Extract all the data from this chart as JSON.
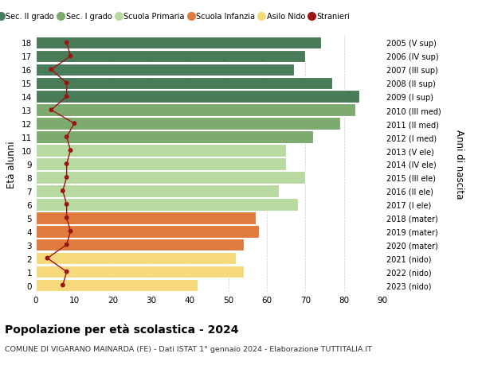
{
  "ages": [
    18,
    17,
    16,
    15,
    14,
    13,
    12,
    11,
    10,
    9,
    8,
    7,
    6,
    5,
    4,
    3,
    2,
    1,
    0
  ],
  "anni_nascita": [
    "2005 (V sup)",
    "2006 (IV sup)",
    "2007 (III sup)",
    "2008 (II sup)",
    "2009 (I sup)",
    "2010 (III med)",
    "2011 (II med)",
    "2012 (I med)",
    "2013 (V ele)",
    "2014 (IV ele)",
    "2015 (III ele)",
    "2016 (II ele)",
    "2017 (I ele)",
    "2018 (mater)",
    "2019 (mater)",
    "2020 (mater)",
    "2021 (nido)",
    "2022 (nido)",
    "2023 (nido)"
  ],
  "bar_values": [
    74,
    70,
    67,
    77,
    84,
    83,
    79,
    72,
    65,
    65,
    70,
    63,
    68,
    57,
    58,
    54,
    52,
    54,
    42
  ],
  "stranieri": [
    8,
    9,
    4,
    8,
    8,
    4,
    10,
    8,
    9,
    8,
    8,
    7,
    8,
    8,
    9,
    8,
    3,
    8,
    7
  ],
  "bar_colors": [
    "#4a7c59",
    "#4a7c59",
    "#4a7c59",
    "#4a7c59",
    "#4a7c59",
    "#7daa6e",
    "#7daa6e",
    "#7daa6e",
    "#b8d9a0",
    "#b8d9a0",
    "#b8d9a0",
    "#b8d9a0",
    "#b8d9a0",
    "#e07a3d",
    "#e07a3d",
    "#e07a3d",
    "#f5d97a",
    "#f5d97a",
    "#f5d97a"
  ],
  "legend_labels": [
    "Sec. II grado",
    "Sec. I grado",
    "Scuola Primaria",
    "Scuola Infanzia",
    "Asilo Nido",
    "Stranieri"
  ],
  "legend_colors": [
    "#4a7c59",
    "#7daa6e",
    "#b8d9a0",
    "#e07a3d",
    "#f5d97a",
    "#9b1515"
  ],
  "ylabel": "Età alunni",
  "ylabel_right": "Anni di nascita",
  "xlim": [
    0,
    90
  ],
  "title": "Popolazione per età scolastica - 2024",
  "subtitle": "COMUNE DI VIGARANO MAINARDA (FE) - Dati ISTAT 1° gennaio 2024 - Elaborazione TUTTITALIA.IT",
  "bg_color": "#ffffff",
  "grid_color": "#cccccc",
  "stranieri_color": "#9b1515",
  "stranieri_line_color": "#9b1515"
}
